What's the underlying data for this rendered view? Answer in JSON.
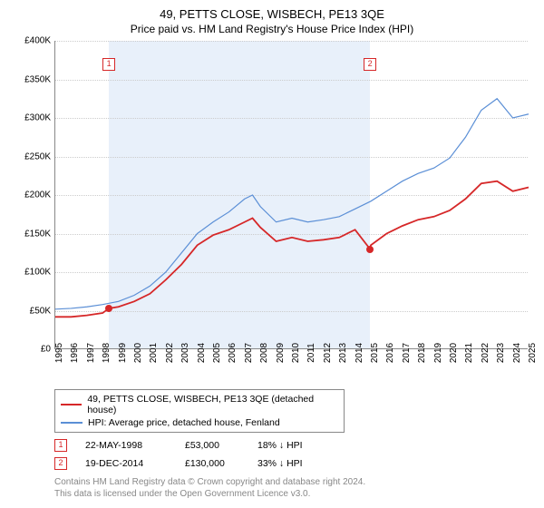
{
  "title": "49, PETTS CLOSE, WISBECH, PE13 3QE",
  "subtitle": "Price paid vs. HM Land Registry's House Price Index (HPI)",
  "chart": {
    "type": "line",
    "background_color": "#ffffff",
    "shade_color": "#e8f0fa",
    "grid_color": "#cccccc",
    "axis_color": "#888888",
    "ylim": [
      0,
      400000
    ],
    "ytick_step": 50000,
    "yticks_labels": [
      "£0",
      "£50K",
      "£100K",
      "£150K",
      "£200K",
      "£250K",
      "£300K",
      "£350K",
      "£400K"
    ],
    "xlim": [
      1995,
      2025
    ],
    "xticks": [
      1995,
      1996,
      1997,
      1998,
      1999,
      2000,
      2001,
      2002,
      2003,
      2004,
      2005,
      2006,
      2007,
      2008,
      2009,
      2010,
      2011,
      2012,
      2013,
      2014,
      2015,
      2016,
      2017,
      2018,
      2019,
      2020,
      2021,
      2022,
      2023,
      2024,
      2025
    ],
    "shade_ranges": [
      [
        1998.4,
        2014.95
      ]
    ],
    "series": [
      {
        "id": "property",
        "label": "49, PETTS CLOSE, WISBECH, PE13 3QE (detached house)",
        "color": "#d62728",
        "line_width": 1.8,
        "data": [
          [
            1995,
            42000
          ],
          [
            1996,
            42000
          ],
          [
            1997,
            44000
          ],
          [
            1998,
            47000
          ],
          [
            1998.4,
            53000
          ],
          [
            1999,
            55000
          ],
          [
            2000,
            62000
          ],
          [
            2001,
            72000
          ],
          [
            2002,
            90000
          ],
          [
            2003,
            110000
          ],
          [
            2004,
            135000
          ],
          [
            2005,
            148000
          ],
          [
            2006,
            155000
          ],
          [
            2007,
            165000
          ],
          [
            2007.5,
            170000
          ],
          [
            2008,
            158000
          ],
          [
            2009,
            140000
          ],
          [
            2010,
            145000
          ],
          [
            2011,
            140000
          ],
          [
            2012,
            142000
          ],
          [
            2013,
            145000
          ],
          [
            2014,
            155000
          ],
          [
            2014.95,
            130000
          ],
          [
            2015,
            135000
          ],
          [
            2016,
            150000
          ],
          [
            2017,
            160000
          ],
          [
            2018,
            168000
          ],
          [
            2019,
            172000
          ],
          [
            2020,
            180000
          ],
          [
            2021,
            195000
          ],
          [
            2022,
            215000
          ],
          [
            2023,
            218000
          ],
          [
            2024,
            205000
          ],
          [
            2025,
            210000
          ]
        ]
      },
      {
        "id": "hpi",
        "label": "HPI: Average price, detached house, Fenland",
        "color": "#5b8fd6",
        "line_width": 1.2,
        "data": [
          [
            1995,
            52000
          ],
          [
            1996,
            53000
          ],
          [
            1997,
            55000
          ],
          [
            1998,
            58000
          ],
          [
            1999,
            62000
          ],
          [
            2000,
            70000
          ],
          [
            2001,
            82000
          ],
          [
            2002,
            100000
          ],
          [
            2003,
            125000
          ],
          [
            2004,
            150000
          ],
          [
            2005,
            165000
          ],
          [
            2006,
            178000
          ],
          [
            2007,
            195000
          ],
          [
            2007.5,
            200000
          ],
          [
            2008,
            185000
          ],
          [
            2009,
            165000
          ],
          [
            2010,
            170000
          ],
          [
            2011,
            165000
          ],
          [
            2012,
            168000
          ],
          [
            2013,
            172000
          ],
          [
            2014,
            182000
          ],
          [
            2015,
            192000
          ],
          [
            2016,
            205000
          ],
          [
            2017,
            218000
          ],
          [
            2018,
            228000
          ],
          [
            2019,
            235000
          ],
          [
            2020,
            248000
          ],
          [
            2021,
            275000
          ],
          [
            2022,
            310000
          ],
          [
            2023,
            325000
          ],
          [
            2024,
            300000
          ],
          [
            2025,
            305000
          ]
        ]
      }
    ],
    "transaction_markers": [
      {
        "n": "1",
        "x": 1998.4,
        "y": 53000,
        "label_y": 370000
      },
      {
        "n": "2",
        "x": 2014.95,
        "y": 130000,
        "label_y": 370000
      }
    ]
  },
  "legend": {
    "items": [
      {
        "color": "#d62728",
        "label": "49, PETTS CLOSE, WISBECH, PE13 3QE (detached house)"
      },
      {
        "color": "#5b8fd6",
        "label": "HPI: Average price, detached house, Fenland"
      }
    ]
  },
  "transactions": [
    {
      "n": "1",
      "date": "22-MAY-1998",
      "price": "£53,000",
      "delta": "18% ↓ HPI"
    },
    {
      "n": "2",
      "date": "19-DEC-2014",
      "price": "£130,000",
      "delta": "33% ↓ HPI"
    }
  ],
  "footer_line1": "Contains HM Land Registry data © Crown copyright and database right 2024.",
  "footer_line2": "This data is licensed under the Open Government Licence v3.0."
}
